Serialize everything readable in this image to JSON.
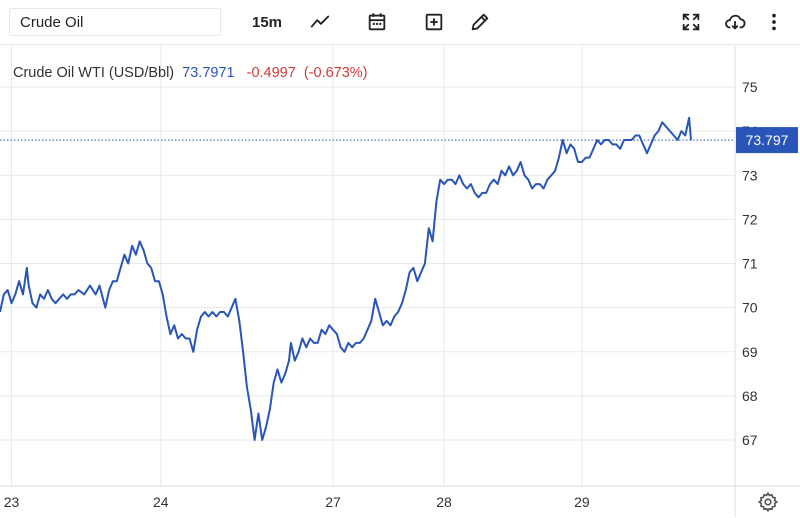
{
  "toolbar": {
    "symbol_value": "Crude Oil",
    "interval_label": "15m",
    "icons": [
      "chart-type-icon",
      "calendar-icon",
      "add-indicator-icon",
      "draw-icon",
      "fullscreen-icon",
      "download-icon",
      "more-icon"
    ]
  },
  "legend": {
    "name": "Crude Oil WTI (USD/Bbl)",
    "price": "73.7971",
    "change": "-0.4997",
    "change_pct": "(-0.673%)"
  },
  "colors": {
    "line": "#2a55b8",
    "up": "#2a55b8",
    "down": "#d23b3b",
    "grid": "#e8e9ec",
    "tag": "#2a55b8"
  },
  "price_tag": {
    "label": "73.797",
    "value": 73.797
  },
  "chart_data": {
    "type": "line",
    "title": "",
    "xlabel": "",
    "ylabel": "",
    "ylim": [
      66.2,
      75.8
    ],
    "y_ticks": [
      67,
      68,
      69,
      70,
      71,
      72,
      73,
      74,
      75
    ],
    "x_tick_labels": [
      "23",
      "24",
      "27",
      "28",
      "29"
    ],
    "x_tick_positions": [
      0.3,
      4.2,
      8.7,
      11.6,
      15.2
    ],
    "xlim": [
      0,
      19.2
    ],
    "grid": true,
    "series": [
      {
        "name": "",
        "points": [
          [
            0.0,
            69.9
          ],
          [
            0.1,
            70.3
          ],
          [
            0.2,
            70.4
          ],
          [
            0.3,
            70.1
          ],
          [
            0.4,
            70.3
          ],
          [
            0.5,
            70.6
          ],
          [
            0.6,
            70.3
          ],
          [
            0.7,
            70.9
          ],
          [
            0.75,
            70.5
          ],
          [
            0.85,
            70.1
          ],
          [
            0.95,
            70.0
          ],
          [
            1.05,
            70.3
          ],
          [
            1.15,
            70.2
          ],
          [
            1.25,
            70.4
          ],
          [
            1.35,
            70.2
          ],
          [
            1.45,
            70.1
          ],
          [
            1.55,
            70.2
          ],
          [
            1.65,
            70.3
          ],
          [
            1.75,
            70.2
          ],
          [
            1.85,
            70.3
          ],
          [
            1.95,
            70.3
          ],
          [
            2.05,
            70.4
          ],
          [
            2.2,
            70.3
          ],
          [
            2.35,
            70.5
          ],
          [
            2.5,
            70.3
          ],
          [
            2.6,
            70.5
          ],
          [
            2.75,
            70.0
          ],
          [
            2.85,
            70.4
          ],
          [
            2.95,
            70.6
          ],
          [
            3.05,
            70.6
          ],
          [
            3.15,
            70.9
          ],
          [
            3.25,
            71.2
          ],
          [
            3.35,
            71.0
          ],
          [
            3.45,
            71.4
          ],
          [
            3.55,
            71.2
          ],
          [
            3.65,
            71.5
          ],
          [
            3.75,
            71.3
          ],
          [
            3.85,
            71.0
          ],
          [
            3.95,
            70.9
          ],
          [
            4.05,
            70.6
          ],
          [
            4.15,
            70.6
          ],
          [
            4.25,
            70.3
          ],
          [
            4.35,
            69.8
          ],
          [
            4.45,
            69.4
          ],
          [
            4.55,
            69.6
          ],
          [
            4.65,
            69.3
          ],
          [
            4.75,
            69.4
          ],
          [
            4.85,
            69.3
          ],
          [
            4.95,
            69.3
          ],
          [
            5.05,
            69.0
          ],
          [
            5.15,
            69.5
          ],
          [
            5.25,
            69.8
          ],
          [
            5.35,
            69.9
          ],
          [
            5.45,
            69.8
          ],
          [
            5.55,
            69.9
          ],
          [
            5.65,
            69.8
          ],
          [
            5.75,
            69.9
          ],
          [
            5.85,
            69.9
          ],
          [
            5.95,
            69.8
          ],
          [
            6.05,
            70.0
          ],
          [
            6.15,
            70.2
          ],
          [
            6.25,
            69.7
          ],
          [
            6.35,
            69.0
          ],
          [
            6.45,
            68.2
          ],
          [
            6.55,
            67.7
          ],
          [
            6.65,
            67.0
          ],
          [
            6.75,
            67.6
          ],
          [
            6.85,
            67.0
          ],
          [
            6.95,
            67.3
          ],
          [
            7.05,
            67.7
          ],
          [
            7.15,
            68.3
          ],
          [
            7.25,
            68.6
          ],
          [
            7.35,
            68.3
          ],
          [
            7.45,
            68.5
          ],
          [
            7.55,
            68.8
          ],
          [
            7.6,
            69.2
          ],
          [
            7.7,
            68.8
          ],
          [
            7.8,
            69.0
          ],
          [
            7.9,
            69.3
          ],
          [
            8.0,
            69.1
          ],
          [
            8.1,
            69.3
          ],
          [
            8.2,
            69.2
          ],
          [
            8.3,
            69.2
          ],
          [
            8.4,
            69.5
          ],
          [
            8.5,
            69.4
          ],
          [
            8.6,
            69.6
          ],
          [
            8.7,
            69.5
          ],
          [
            8.8,
            69.4
          ],
          [
            8.9,
            69.1
          ],
          [
            9.0,
            69.0
          ],
          [
            9.1,
            69.2
          ],
          [
            9.2,
            69.1
          ],
          [
            9.3,
            69.2
          ],
          [
            9.4,
            69.2
          ],
          [
            9.5,
            69.3
          ],
          [
            9.6,
            69.5
          ],
          [
            9.7,
            69.7
          ],
          [
            9.8,
            70.2
          ],
          [
            9.9,
            69.9
          ],
          [
            10.0,
            69.6
          ],
          [
            10.1,
            69.7
          ],
          [
            10.2,
            69.6
          ],
          [
            10.3,
            69.8
          ],
          [
            10.4,
            69.9
          ],
          [
            10.5,
            70.1
          ],
          [
            10.6,
            70.4
          ],
          [
            10.7,
            70.8
          ],
          [
            10.8,
            70.9
          ],
          [
            10.9,
            70.6
          ],
          [
            11.0,
            70.8
          ],
          [
            11.1,
            71.0
          ],
          [
            11.2,
            71.8
          ],
          [
            11.3,
            71.5
          ],
          [
            11.4,
            72.4
          ],
          [
            11.5,
            72.9
          ],
          [
            11.6,
            72.8
          ],
          [
            11.7,
            72.9
          ],
          [
            11.8,
            72.9
          ],
          [
            11.9,
            72.8
          ],
          [
            12.0,
            73.0
          ],
          [
            12.1,
            72.8
          ],
          [
            12.2,
            72.7
          ],
          [
            12.3,
            72.8
          ],
          [
            12.4,
            72.6
          ],
          [
            12.5,
            72.5
          ],
          [
            12.6,
            72.6
          ],
          [
            12.7,
            72.6
          ],
          [
            12.8,
            72.8
          ],
          [
            12.9,
            72.9
          ],
          [
            13.0,
            72.8
          ],
          [
            13.1,
            73.1
          ],
          [
            13.2,
            73.0
          ],
          [
            13.3,
            73.2
          ],
          [
            13.4,
            73.0
          ],
          [
            13.5,
            73.1
          ],
          [
            13.6,
            73.3
          ],
          [
            13.7,
            73.0
          ],
          [
            13.8,
            72.9
          ],
          [
            13.9,
            72.7
          ],
          [
            14.0,
            72.8
          ],
          [
            14.1,
            72.8
          ],
          [
            14.2,
            72.7
          ],
          [
            14.3,
            72.9
          ],
          [
            14.4,
            73.0
          ],
          [
            14.5,
            73.1
          ],
          [
            14.6,
            73.4
          ],
          [
            14.7,
            73.8
          ],
          [
            14.8,
            73.5
          ],
          [
            14.9,
            73.7
          ],
          [
            15.0,
            73.6
          ],
          [
            15.1,
            73.3
          ],
          [
            15.2,
            73.3
          ],
          [
            15.3,
            73.4
          ],
          [
            15.4,
            73.4
          ],
          [
            15.5,
            73.6
          ],
          [
            15.6,
            73.8
          ],
          [
            15.7,
            73.7
          ],
          [
            15.8,
            73.8
          ],
          [
            15.9,
            73.8
          ],
          [
            16.0,
            73.7
          ],
          [
            16.1,
            73.7
          ],
          [
            16.2,
            73.6
          ],
          [
            16.3,
            73.8
          ],
          [
            16.4,
            73.8
          ],
          [
            16.5,
            73.8
          ],
          [
            16.6,
            73.9
          ],
          [
            16.7,
            73.9
          ],
          [
            16.8,
            73.7
          ],
          [
            16.9,
            73.5
          ],
          [
            17.0,
            73.7
          ],
          [
            17.1,
            73.9
          ],
          [
            17.2,
            74.0
          ],
          [
            17.3,
            74.2
          ],
          [
            17.4,
            74.1
          ],
          [
            17.5,
            74.0
          ],
          [
            17.6,
            73.9
          ],
          [
            17.7,
            73.8
          ],
          [
            17.8,
            74.0
          ],
          [
            17.9,
            73.9
          ],
          [
            18.0,
            74.3
          ],
          [
            18.05,
            73.797
          ]
        ]
      }
    ]
  }
}
